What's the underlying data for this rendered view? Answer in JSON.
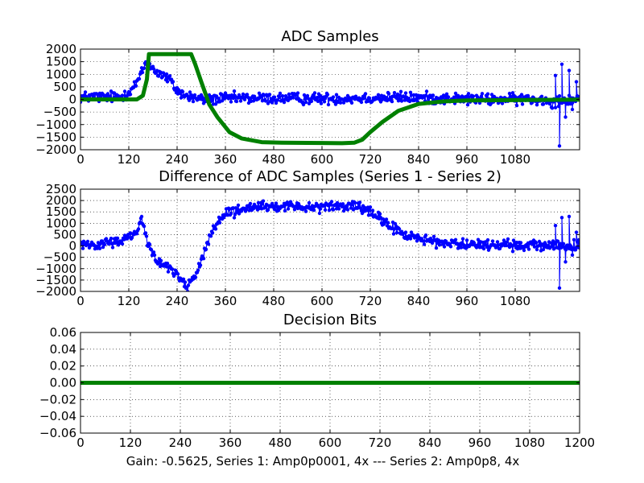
{
  "figure_caption": "Gain: -0.5625, Series 1: Amp0p0001, 4x --- Series 2: Amp0p8, 4x",
  "colors": {
    "blue": "#0000ff",
    "green": "#008000"
  },
  "chart_data": [
    {
      "type": "line",
      "title": "ADC Samples",
      "xlim": [
        0,
        1240
      ],
      "ylim": [
        -2000,
        2000
      ],
      "xticks": [
        0,
        120,
        240,
        360,
        480,
        600,
        720,
        840,
        960,
        1080
      ],
      "yticks": [
        2000,
        1500,
        1000,
        500,
        0,
        -500,
        -1000,
        -1500,
        -2000
      ],
      "series": [
        {
          "name": "Series 1",
          "color": "#0000ff",
          "markers": true,
          "noise_amplitude": 250,
          "points": [
            [
              0,
              100
            ],
            [
              100,
              100
            ],
            [
              120,
              300
            ],
            [
              140,
              650
            ],
            [
              155,
              1150
            ],
            [
              160,
              1400
            ],
            [
              170,
              1500
            ],
            [
              180,
              1200
            ],
            [
              200,
              1000
            ],
            [
              220,
              800
            ],
            [
              240,
              350
            ],
            [
              260,
              150
            ],
            [
              300,
              0
            ],
            [
              400,
              50
            ],
            [
              600,
              30
            ],
            [
              800,
              80
            ],
            [
              1000,
              0
            ],
            [
              1150,
              0
            ],
            [
              1170,
              -100
            ],
            [
              1200,
              0
            ],
            [
              1240,
              0
            ]
          ],
          "spikes": [
            [
              1190,
              -1850
            ],
            [
              1196,
              1400
            ],
            [
              1205,
              -700
            ],
            [
              1214,
              1150
            ],
            [
              1222,
              -400
            ],
            [
              1232,
              700
            ],
            [
              1180,
              950
            ]
          ]
        },
        {
          "name": "Series 2",
          "color": "#008000",
          "markers": false,
          "points": [
            [
              0,
              0
            ],
            [
              140,
              0
            ],
            [
              155,
              150
            ],
            [
              165,
              800
            ],
            [
              170,
              1800
            ],
            [
              275,
              1800
            ],
            [
              285,
              1400
            ],
            [
              300,
              700
            ],
            [
              320,
              -200
            ],
            [
              340,
              -700
            ],
            [
              370,
              -1300
            ],
            [
              400,
              -1550
            ],
            [
              450,
              -1700
            ],
            [
              500,
              -1720
            ],
            [
              600,
              -1730
            ],
            [
              650,
              -1740
            ],
            [
              680,
              -1720
            ],
            [
              700,
              -1600
            ],
            [
              720,
              -1300
            ],
            [
              750,
              -900
            ],
            [
              790,
              -450
            ],
            [
              840,
              -180
            ],
            [
              900,
              -80
            ],
            [
              960,
              -40
            ],
            [
              1240,
              -10
            ]
          ]
        }
      ]
    },
    {
      "type": "line",
      "title": "Difference of ADC Samples (Series 1 - Series 2)",
      "xlim": [
        0,
        1240
      ],
      "ylim": [
        -2000,
        2500
      ],
      "xticks": [
        0,
        120,
        240,
        360,
        480,
        600,
        720,
        840,
        960,
        1080
      ],
      "yticks": [
        2500,
        2000,
        1500,
        1000,
        500,
        0,
        -500,
        -1000,
        -1500,
        -2000
      ],
      "series": [
        {
          "name": "Series 1 - Series 2",
          "color": "#0000ff",
          "markers": true,
          "noise_amplitude": 250,
          "points": [
            [
              0,
              100
            ],
            [
              60,
              100
            ],
            [
              100,
              200
            ],
            [
              140,
              650
            ],
            [
              150,
              1200
            ],
            [
              160,
              700
            ],
            [
              170,
              0
            ],
            [
              180,
              -400
            ],
            [
              200,
              -800
            ],
            [
              230,
              -1100
            ],
            [
              250,
              -1400
            ],
            [
              265,
              -1800
            ],
            [
              280,
              -1500
            ],
            [
              300,
              -600
            ],
            [
              320,
              300
            ],
            [
              340,
              1000
            ],
            [
              360,
              1400
            ],
            [
              400,
              1600
            ],
            [
              450,
              1700
            ],
            [
              600,
              1750
            ],
            [
              680,
              1750
            ],
            [
              700,
              1650
            ],
            [
              720,
              1450
            ],
            [
              750,
              1100
            ],
            [
              790,
              650
            ],
            [
              840,
              300
            ],
            [
              900,
              150
            ],
            [
              960,
              50
            ],
            [
              1240,
              0
            ]
          ],
          "spikes": [
            [
              1190,
              -1850
            ],
            [
              1196,
              1250
            ],
            [
              1205,
              -700
            ],
            [
              1214,
              1300
            ],
            [
              1222,
              -400
            ],
            [
              1232,
              600
            ],
            [
              1180,
              900
            ]
          ]
        }
      ]
    },
    {
      "type": "line",
      "title": "Decision Bits",
      "xlim": [
        0,
        1200
      ],
      "ylim": [
        -0.06,
        0.06
      ],
      "xticks": [
        0,
        120,
        240,
        360,
        480,
        600,
        720,
        840,
        960,
        1080,
        1200
      ],
      "yticks": [
        0.06,
        0.04,
        0.02,
        0.0,
        -0.02,
        -0.04,
        -0.06
      ],
      "ytick_labels": [
        "0.06",
        "0.04",
        "0.02",
        "0.00",
        "−0.02",
        "−0.04",
        "−0.06"
      ],
      "series": [
        {
          "name": "Decision Bits",
          "color": "#008000",
          "markers": false,
          "points": [
            [
              0,
              0
            ],
            [
              1200,
              0
            ]
          ]
        }
      ]
    }
  ]
}
